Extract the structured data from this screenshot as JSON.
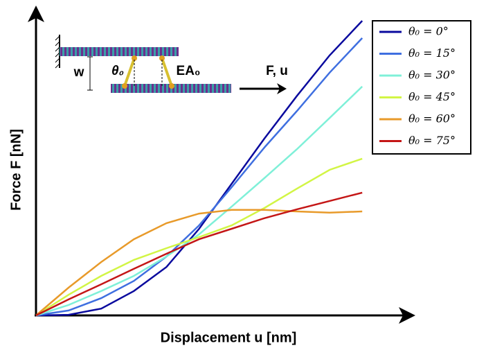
{
  "chart_data": {
    "type": "line",
    "xlabel": "Displacement u [nm]",
    "ylabel": "Force F [nN]",
    "annotations": [
      "w",
      "θ₀",
      "EA₀",
      "F, u"
    ],
    "x": [
      0,
      0.1,
      0.2,
      0.3,
      0.4,
      0.5,
      0.6,
      0.7,
      0.8,
      0.9,
      1.0
    ],
    "xlim": [
      0,
      1.163
    ],
    "ylim": [
      0,
      1
    ],
    "legend": "upper right",
    "series": [
      {
        "name": "θ₀ = 0°",
        "color": "#0a0a9e",
        "values": [
          0,
          0.002,
          0.022,
          0.079,
          0.157,
          0.281,
          0.427,
          0.573,
          0.712,
          0.843,
          0.955
        ]
      },
      {
        "name": "θ₀ = 15°",
        "color": "#3f6fe0",
        "values": [
          0,
          0.016,
          0.056,
          0.112,
          0.191,
          0.292,
          0.416,
          0.544,
          0.663,
          0.787,
          0.899
        ]
      },
      {
        "name": "θ₀ = 30°",
        "color": "#7ff0d8",
        "values": [
          0,
          0.034,
          0.079,
          0.128,
          0.191,
          0.263,
          0.353,
          0.445,
          0.539,
          0.64,
          0.742
        ]
      },
      {
        "name": "θ₀ = 45°",
        "color": "#d2f545",
        "values": [
          0,
          0.067,
          0.128,
          0.18,
          0.218,
          0.254,
          0.292,
          0.348,
          0.411,
          0.472,
          0.508
        ]
      },
      {
        "name": "θ₀ = 60°",
        "color": "#e89a2a",
        "values": [
          0,
          0.09,
          0.173,
          0.247,
          0.299,
          0.33,
          0.342,
          0.342,
          0.337,
          0.333,
          0.337
        ]
      },
      {
        "name": "θ₀ = 75°",
        "color": "#c41616",
        "values": [
          0,
          0.052,
          0.101,
          0.151,
          0.2,
          0.247,
          0.281,
          0.315,
          0.344,
          0.371,
          0.398
        ]
      }
    ]
  }
}
